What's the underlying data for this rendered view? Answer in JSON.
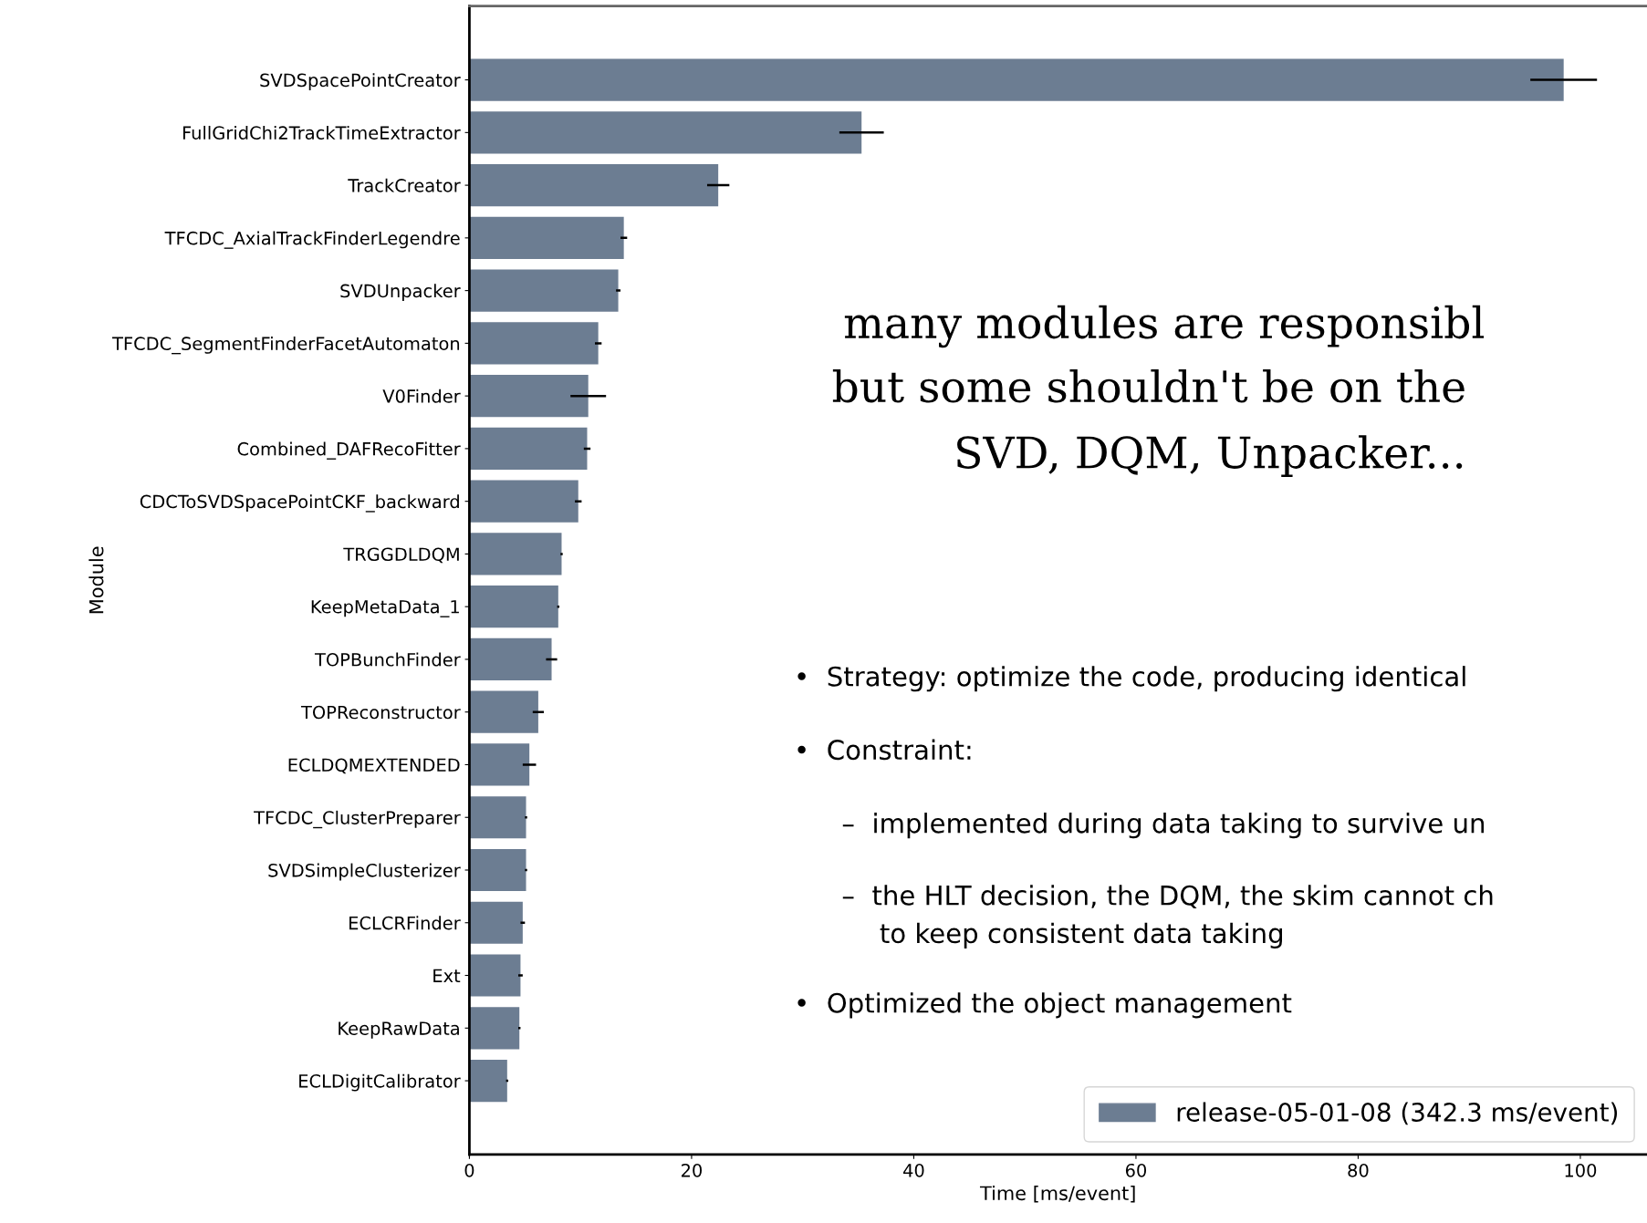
{
  "chart_data": {
    "type": "bar",
    "orientation": "horizontal",
    "xlabel": "Time [ms/event]",
    "ylabel": "Module",
    "categories": [
      "SVDSpacePointCreator",
      "FullGridChi2TrackTimeExtractor",
      "TrackCreator",
      "TFCDC_AxialTrackFinderLegendre",
      "SVDUnpacker",
      "TFCDC_SegmentFinderFacetAutomaton",
      "V0Finder",
      "Combined_DAFRecoFitter",
      "CDCToSVDSpacePointCKF_backward",
      "TRGGDLDQM",
      "KeepMetaData_1",
      "TOPBunchFinder",
      "TOPReconstructor",
      "ECLDQMEXTENDED",
      "TFCDC_ClusterPreparer",
      "SVDSimpleClusterizer",
      "ECLCRFinder",
      "Ext",
      "KeepRawData",
      "ECLDigitCalibrator"
    ],
    "series": [
      {
        "name": "release-05-01-08 (342.3 ms/event)",
        "color": "#6c7d92",
        "values": [
          98.5,
          35.3,
          22.4,
          13.9,
          13.4,
          11.6,
          10.7,
          10.6,
          9.8,
          8.3,
          8.0,
          7.4,
          6.2,
          5.4,
          5.1,
          5.1,
          4.8,
          4.6,
          4.5,
          3.4
        ],
        "errors": [
          3,
          2,
          1,
          0.3,
          0.2,
          0.3,
          1.6,
          0.3,
          0.3,
          0.1,
          0.1,
          0.5,
          0.5,
          0.6,
          0.1,
          0.1,
          0.2,
          0.2,
          0.1,
          0.1
        ]
      }
    ],
    "xlim": [
      0,
      106
    ],
    "xticks": [
      0,
      20,
      40,
      60,
      80,
      100
    ],
    "grid": false,
    "legend": "bottom right",
    "annotations": [
      "many modules are responsibl",
      "but some shouldn't be on the",
      "SVD, DQM, Unpacker...",
      "•  Strategy: optimize the code, producing identical",
      "•  Constraint:",
      "–  implemented during data taking to survive un",
      "–  the HLT decision, the DQM, the skim cannot ch",
      "to keep consistent data taking",
      "•  Optimized the object management"
    ]
  }
}
